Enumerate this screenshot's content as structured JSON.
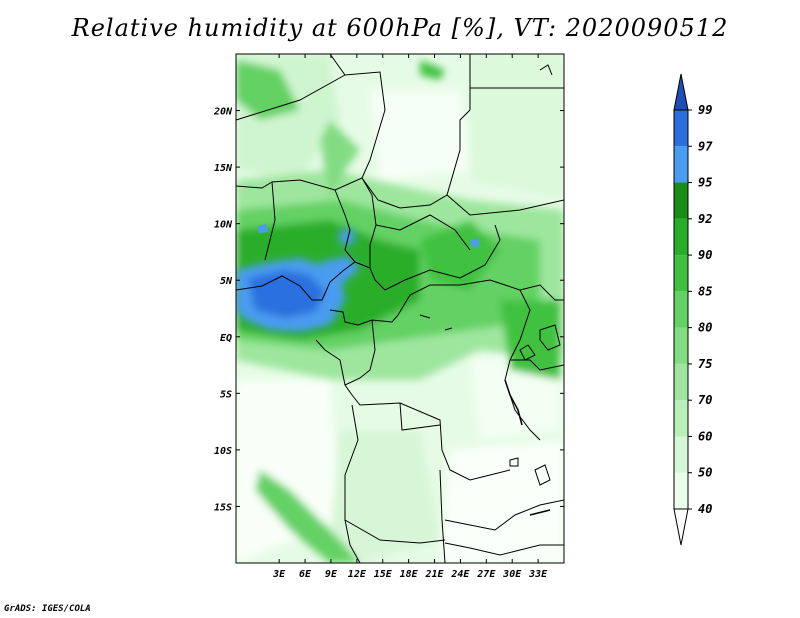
{
  "title": "Relative humidity at 600hPa [%], VT: 2020090512",
  "credit": "GrADS: IGES/COLA",
  "map": {
    "lon_range": [
      -2,
      36
    ],
    "lat_range": [
      -20,
      25
    ],
    "lon_ticks": [
      "3E",
      "6E",
      "9E",
      "12E",
      "15E",
      "18E",
      "21E",
      "24E",
      "27E",
      "30E",
      "33E"
    ],
    "lat_ticks": [
      "20N",
      "15N",
      "10N",
      "5N",
      "EQ",
      "5S",
      "10S",
      "15S"
    ]
  },
  "colorbar": {
    "levels": [
      "40",
      "50",
      "60",
      "70",
      "75",
      "80",
      "85",
      "90",
      "92",
      "95",
      "97",
      "99"
    ],
    "colors": [
      "#ffffff",
      "#eaffea",
      "#d4f8d4",
      "#b9f0b9",
      "#9ee69e",
      "#82dc82",
      "#63d163",
      "#3fc13f",
      "#29ae29",
      "#178f17",
      "#4a9cf0",
      "#2b6fde",
      "#1e4fb8"
    ]
  }
}
